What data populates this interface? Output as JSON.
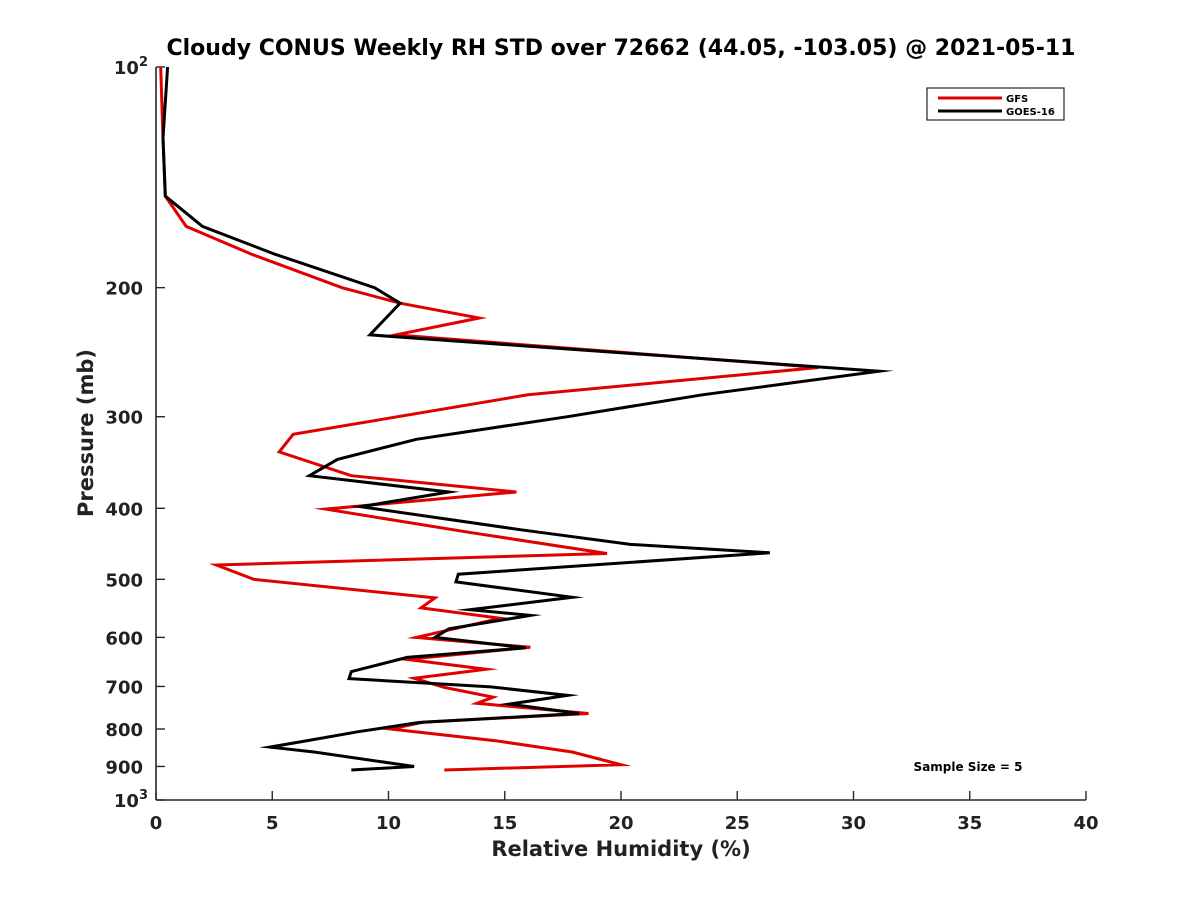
{
  "chart_data": {
    "type": "line",
    "title": "Cloudy CONUS Weekly RH STD over 72662 (44.05, -103.05) @ 2021-05-11",
    "xlabel": "Relative Humidity (%)",
    "ylabel": "Pressure (mb)",
    "xlim": [
      0,
      40
    ],
    "ylim": [
      100,
      1000
    ],
    "y_scale": "log",
    "y_reversed": true,
    "xticks": [
      0,
      5,
      10,
      15,
      20,
      25,
      30,
      35,
      40
    ],
    "yticks": [
      {
        "value": 100,
        "base": "10",
        "exp": "2"
      },
      {
        "value": 200,
        "label": "200"
      },
      {
        "value": 300,
        "label": "300"
      },
      {
        "value": 400,
        "label": "400"
      },
      {
        "value": 500,
        "label": "500"
      },
      {
        "value": 600,
        "label": "600"
      },
      {
        "value": 700,
        "label": "700"
      },
      {
        "value": 800,
        "label": "800"
      },
      {
        "value": 900,
        "label": "900"
      },
      {
        "value": 1000,
        "base": "10",
        "exp": "3"
      }
    ],
    "grid": false,
    "legend_position": "top-right",
    "annotation": "Sample Size = 5",
    "series": [
      {
        "name": "GFS",
        "color": "#e00000",
        "points": [
          [
            0.2,
            100
          ],
          [
            0.3,
            125
          ],
          [
            0.4,
            150
          ],
          [
            1.3,
            165
          ],
          [
            4.1,
            180
          ],
          [
            8.0,
            200
          ],
          [
            10.5,
            210
          ],
          [
            13.9,
            220
          ],
          [
            10.3,
            232
          ],
          [
            28.5,
            257
          ],
          [
            16.0,
            280
          ],
          [
            5.9,
            317
          ],
          [
            5.3,
            335
          ],
          [
            8.4,
            361
          ],
          [
            15.5,
            380
          ],
          [
            7.3,
            401
          ],
          [
            13.6,
            432
          ],
          [
            19.4,
            461
          ],
          [
            2.6,
            478
          ],
          [
            4.2,
            500
          ],
          [
            12.0,
            530
          ],
          [
            11.4,
            547
          ],
          [
            14.8,
            565
          ],
          [
            11.2,
            600
          ],
          [
            16.1,
            619
          ],
          [
            10.8,
            643
          ],
          [
            14.2,
            663
          ],
          [
            11.1,
            682
          ],
          [
            12.4,
            702
          ],
          [
            14.5,
            724
          ],
          [
            13.8,
            738
          ],
          [
            18.6,
            762
          ],
          [
            11.5,
            783
          ],
          [
            10.1,
            800
          ],
          [
            14.6,
            830
          ],
          [
            17.9,
            860
          ],
          [
            20.0,
            895
          ],
          [
            12.4,
            910
          ]
        ]
      },
      {
        "name": "GOES-16",
        "color": "#000000",
        "points": [
          [
            0.5,
            100
          ],
          [
            0.3,
            125
          ],
          [
            0.4,
            150
          ],
          [
            2.0,
            165
          ],
          [
            5.1,
            180
          ],
          [
            9.4,
            200
          ],
          [
            10.5,
            210
          ],
          [
            9.2,
            232
          ],
          [
            31.1,
            260
          ],
          [
            23.5,
            280
          ],
          [
            17.7,
            300
          ],
          [
            11.2,
            322
          ],
          [
            7.8,
            343
          ],
          [
            6.6,
            361
          ],
          [
            12.6,
            380
          ],
          [
            8.8,
            398
          ],
          [
            15.7,
            428
          ],
          [
            20.4,
            448
          ],
          [
            26.4,
            460
          ],
          [
            13.0,
            492
          ],
          [
            12.9,
            504
          ],
          [
            17.9,
            529
          ],
          [
            13.5,
            550
          ],
          [
            16.1,
            560
          ],
          [
            12.6,
            584
          ],
          [
            12.0,
            600
          ],
          [
            15.9,
            620
          ],
          [
            10.8,
            639
          ],
          [
            8.4,
            668
          ],
          [
            8.3,
            683
          ],
          [
            14.4,
            701
          ],
          [
            17.7,
            720
          ],
          [
            15.2,
            740
          ],
          [
            18.2,
            762
          ],
          [
            11.3,
            784
          ],
          [
            8.7,
            807
          ],
          [
            6.3,
            832
          ],
          [
            4.9,
            847
          ],
          [
            6.8,
            860
          ],
          [
            11.1,
            900
          ],
          [
            8.4,
            910
          ]
        ]
      }
    ]
  }
}
